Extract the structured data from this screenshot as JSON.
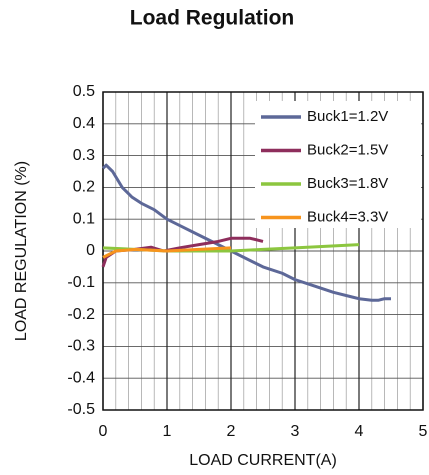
{
  "chart_data": {
    "type": "line",
    "title": "Load Regulation",
    "x_label": "LOAD CURRENT(A)",
    "y_label": "LOAD REGULATION (%)",
    "xlim": [
      0,
      5
    ],
    "xticks": [
      0,
      1,
      2,
      3,
      4,
      5
    ],
    "ylim": [
      -0.5,
      0.5
    ],
    "yticks": [
      0.5,
      0.4,
      0.3,
      0.2,
      0.1,
      0,
      -0.1,
      -0.2,
      -0.3,
      -0.4,
      -0.5
    ],
    "grid": true,
    "minor_grid_divisions": 5,
    "legend": "upper right",
    "series": [
      {
        "name": "Buck1=1.2V",
        "color": "#5d6898",
        "x": [
          0,
          0.05,
          0.15,
          0.3,
          0.45,
          0.6,
          0.8,
          1.0,
          1.2,
          1.5,
          1.8,
          2.0,
          2.2,
          2.5,
          2.8,
          3.0,
          3.3,
          3.6,
          3.9,
          4.0,
          4.2,
          4.3,
          4.4,
          4.5
        ],
        "values": [
          0.26,
          0.27,
          0.25,
          0.2,
          0.17,
          0.15,
          0.13,
          0.1,
          0.08,
          0.05,
          0.02,
          0,
          -0.02,
          -0.05,
          -0.07,
          -0.09,
          -0.11,
          -0.13,
          -0.145,
          -0.15,
          -0.155,
          -0.155,
          -0.15,
          -0.15
        ]
      },
      {
        "name": "Buck2=1.5V",
        "color": "#8e2e5c",
        "x": [
          0,
          0.05,
          0.2,
          0.5,
          0.75,
          0.95,
          1.2,
          1.5,
          1.8,
          2.0,
          2.3,
          2.5
        ],
        "values": [
          -0.05,
          -0.02,
          0,
          0.005,
          0.012,
          0,
          0.01,
          0.02,
          0.03,
          0.04,
          0.04,
          0.03
        ]
      },
      {
        "name": "Buck3=1.8V",
        "color": "#8cc63f",
        "x": [
          0,
          0.5,
          1.0,
          2.0,
          2.5,
          3.0,
          3.5,
          4.0
        ],
        "values": [
          0.01,
          0.005,
          0,
          0,
          0.005,
          0.01,
          0.015,
          0.02
        ]
      },
      {
        "name": "Buck4=3.3V",
        "color": "#f7941d",
        "x": [
          0,
          0.2,
          0.5,
          1.0,
          1.5,
          2.0
        ],
        "values": [
          -0.02,
          0,
          0.005,
          0,
          0.005,
          0.01
        ]
      }
    ]
  }
}
